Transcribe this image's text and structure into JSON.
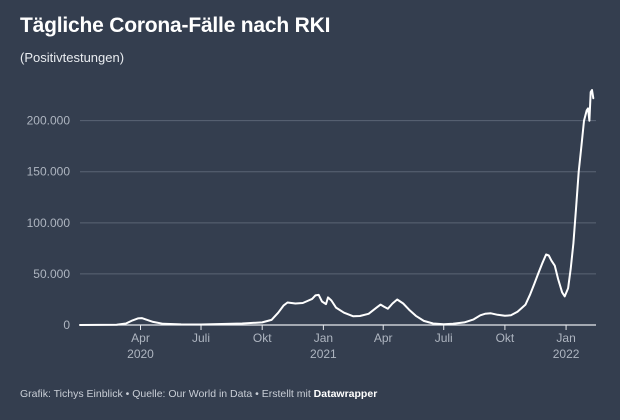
{
  "header": {
    "title": "Tägliche Corona-Fälle nach RKI",
    "subtitle": "(Positivtestungen)"
  },
  "footer": {
    "text": "Grafik: Tichys Einblick • Quelle: Our World in Data • Erstellt mit ",
    "brand": "Datawrapper"
  },
  "colors": {
    "background": "#343e4f",
    "line": "#ffffff",
    "grid": "#5a6475",
    "tick_text": "#aeb5c0"
  },
  "chart_data": {
    "type": "line",
    "title": "Tägliche Corona-Fälle nach RKI",
    "subtitle": "(Positivtestungen)",
    "xlabel": "",
    "ylabel": "",
    "x_range": [
      "2020-01-01",
      "2022-02-15"
    ],
    "ylim": [
      0,
      230000
    ],
    "y_ticks": [
      0,
      50000,
      100000,
      150000,
      200000
    ],
    "y_tick_labels": [
      "0",
      "50.000",
      "100.000",
      "150.000",
      "200.000"
    ],
    "x_ticks": [
      {
        "date": "2020-04-01",
        "label": "Apr",
        "year": "2020"
      },
      {
        "date": "2020-07-01",
        "label": "Juli",
        "year": ""
      },
      {
        "date": "2020-10-01",
        "label": "Okt",
        "year": ""
      },
      {
        "date": "2021-01-01",
        "label": "Jan",
        "year": "2021"
      },
      {
        "date": "2021-04-01",
        "label": "Apr",
        "year": ""
      },
      {
        "date": "2021-07-01",
        "label": "Juli",
        "year": ""
      },
      {
        "date": "2021-10-01",
        "label": "Okt",
        "year": ""
      },
      {
        "date": "2022-01-01",
        "label": "Jan",
        "year": "2022"
      }
    ],
    "grid": true,
    "series": [
      {
        "points": [
          [
            "2020-01-01",
            0
          ],
          [
            "2020-02-25",
            200
          ],
          [
            "2020-03-10",
            1500
          ],
          [
            "2020-03-20",
            4500
          ],
          [
            "2020-03-28",
            6500
          ],
          [
            "2020-04-03",
            6800
          ],
          [
            "2020-04-10",
            5200
          ],
          [
            "2020-04-20",
            3000
          ],
          [
            "2020-05-05",
            1200
          ],
          [
            "2020-06-01",
            600
          ],
          [
            "2020-07-01",
            500
          ],
          [
            "2020-08-01",
            1000
          ],
          [
            "2020-09-01",
            1500
          ],
          [
            "2020-10-01",
            2500
          ],
          [
            "2020-10-15",
            5000
          ],
          [
            "2020-10-25",
            12000
          ],
          [
            "2020-11-02",
            19000
          ],
          [
            "2020-11-08",
            22000
          ],
          [
            "2020-11-20",
            21000
          ],
          [
            "2020-12-01",
            21500
          ],
          [
            "2020-12-08",
            23500
          ],
          [
            "2020-12-15",
            25500
          ],
          [
            "2020-12-20",
            29000
          ],
          [
            "2020-12-25",
            29500
          ],
          [
            "2020-12-30",
            23000
          ],
          [
            "2021-01-05",
            20500
          ],
          [
            "2021-01-08",
            27000
          ],
          [
            "2021-01-13",
            24000
          ],
          [
            "2021-01-20",
            17000
          ],
          [
            "2021-02-01",
            12000
          ],
          [
            "2021-02-15",
            8500
          ],
          [
            "2021-02-25",
            8800
          ],
          [
            "2021-03-10",
            11000
          ],
          [
            "2021-03-22",
            17000
          ],
          [
            "2021-03-28",
            20000
          ],
          [
            "2021-04-02",
            18000
          ],
          [
            "2021-04-08",
            16000
          ],
          [
            "2021-04-15",
            21000
          ],
          [
            "2021-04-22",
            25000
          ],
          [
            "2021-05-01",
            21000
          ],
          [
            "2021-05-10",
            15000
          ],
          [
            "2021-05-20",
            9000
          ],
          [
            "2021-06-01",
            4000
          ],
          [
            "2021-06-15",
            1500
          ],
          [
            "2021-07-01",
            700
          ],
          [
            "2021-07-15",
            1300
          ],
          [
            "2021-08-01",
            2500
          ],
          [
            "2021-08-15",
            5500
          ],
          [
            "2021-08-25",
            9500
          ],
          [
            "2021-09-01",
            11000
          ],
          [
            "2021-09-10",
            11500
          ],
          [
            "2021-09-20",
            10000
          ],
          [
            "2021-10-01",
            9000
          ],
          [
            "2021-10-10",
            9500
          ],
          [
            "2021-10-20",
            13000
          ],
          [
            "2021-10-25",
            16000
          ],
          [
            "2021-11-01",
            20000
          ],
          [
            "2021-11-08",
            30000
          ],
          [
            "2021-11-14",
            40000
          ],
          [
            "2021-11-20",
            50000
          ],
          [
            "2021-11-26",
            60000
          ],
          [
            "2021-12-02",
            69000
          ],
          [
            "2021-12-06",
            68000
          ],
          [
            "2021-12-10",
            63000
          ],
          [
            "2021-12-15",
            58000
          ],
          [
            "2021-12-20",
            45000
          ],
          [
            "2021-12-26",
            32000
          ],
          [
            "2021-12-30",
            28000
          ],
          [
            "2022-01-04",
            36000
          ],
          [
            "2022-01-08",
            55000
          ],
          [
            "2022-01-12",
            80000
          ],
          [
            "2022-01-16",
            115000
          ],
          [
            "2022-01-20",
            150000
          ],
          [
            "2022-01-24",
            175000
          ],
          [
            "2022-01-28",
            200000
          ],
          [
            "2022-02-01",
            210000
          ],
          [
            "2022-02-03",
            212000
          ],
          [
            "2022-02-05",
            200000
          ],
          [
            "2022-02-07",
            228000
          ],
          [
            "2022-02-09",
            230000
          ],
          [
            "2022-02-11",
            222000
          ]
        ]
      }
    ]
  }
}
